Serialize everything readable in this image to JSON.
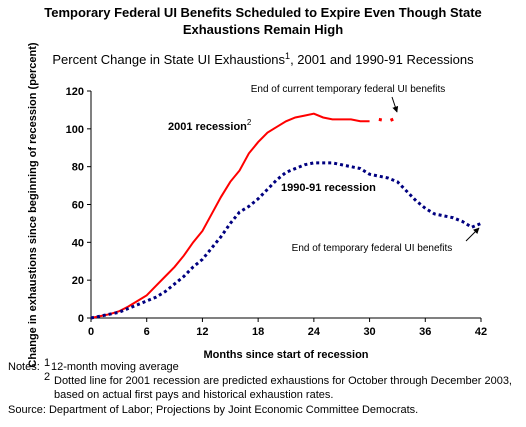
{
  "chart_data": {
    "type": "line",
    "title": [
      "Temporary Federal UI Benefits Scheduled to Expire Even Though State",
      "Exhaustions Remain High"
    ],
    "subtitle": [
      "Percent Change in State UI Exhaustions",
      "1",
      ", 2001 and 1990-91 Recessions"
    ],
    "x_label": "Months since start of recession",
    "y_label": "Change in exhaustions since beginning of recession (percent)",
    "x": [
      0,
      1,
      2,
      3,
      4,
      5,
      6,
      7,
      8,
      9,
      10,
      11,
      12,
      13,
      14,
      15,
      16,
      17,
      18,
      19,
      20,
      21,
      22,
      23,
      24,
      25,
      26,
      27,
      28,
      29,
      30,
      31,
      32,
      33,
      34,
      35,
      36,
      37,
      38,
      39,
      40,
      41,
      42
    ],
    "series": [
      {
        "name": "2001 recession",
        "color": "#ff0000",
        "style": "solid",
        "values": [
          0,
          1,
          2,
          3.5,
          6,
          9,
          12,
          17,
          22,
          27,
          33,
          40,
          46,
          55,
          64,
          72,
          78,
          87,
          93,
          98,
          101,
          104,
          106,
          107,
          108,
          106,
          105,
          105,
          105,
          104,
          104,
          null,
          null,
          null,
          null,
          null,
          null,
          null,
          null,
          null,
          null,
          null,
          null
        ]
      },
      {
        "color": "#ff0000",
        "style": "dotted",
        "values": [
          null,
          null,
          null,
          null,
          null,
          null,
          null,
          null,
          null,
          null,
          null,
          null,
          null,
          null,
          null,
          null,
          null,
          null,
          null,
          null,
          null,
          null,
          null,
          null,
          null,
          null,
          null,
          null,
          null,
          null,
          null,
          105,
          104,
          106,
          null,
          null,
          null,
          null,
          null,
          null,
          null,
          null,
          null
        ]
      },
      {
        "name": "1990-91 recession",
        "color": "#000080",
        "style": "dotted",
        "values": [
          0,
          1,
          2,
          3,
          5,
          7,
          9,
          11,
          14,
          18,
          22,
          27,
          31,
          37,
          43,
          50,
          56,
          59,
          63,
          68,
          73,
          77,
          79,
          81,
          82,
          82,
          82,
          81,
          80,
          79,
          76,
          75,
          74,
          72,
          67,
          62,
          58,
          55,
          54,
          53,
          51,
          48,
          50
        ]
      }
    ],
    "xlim": [
      0,
      42
    ],
    "xticks": [
      0,
      6,
      12,
      18,
      24,
      30,
      36,
      42
    ],
    "ylim": [
      0,
      120
    ],
    "yticks": [
      0,
      20,
      40,
      60,
      80,
      100,
      120
    ],
    "annotations": {
      "recession_2001": [
        "2001 recession",
        "2"
      ],
      "recession_1990": "1990-91 recession",
      "end_current": "End of current temporary federal UI benefits",
      "end_1990": "End of temporary federal UI benefits"
    },
    "notes": {
      "label": "Notes:",
      "note1": [
        "1",
        "12-month moving average"
      ],
      "note2": [
        "2",
        "Dotted line for 2001 recession are predicted exhaustions for October through December 2003,",
        "based on actual first pays and historical exhaustion rates."
      ],
      "source": "Source: Department of Labor; Projections by Joint Economic Committee Democrats."
    }
  }
}
